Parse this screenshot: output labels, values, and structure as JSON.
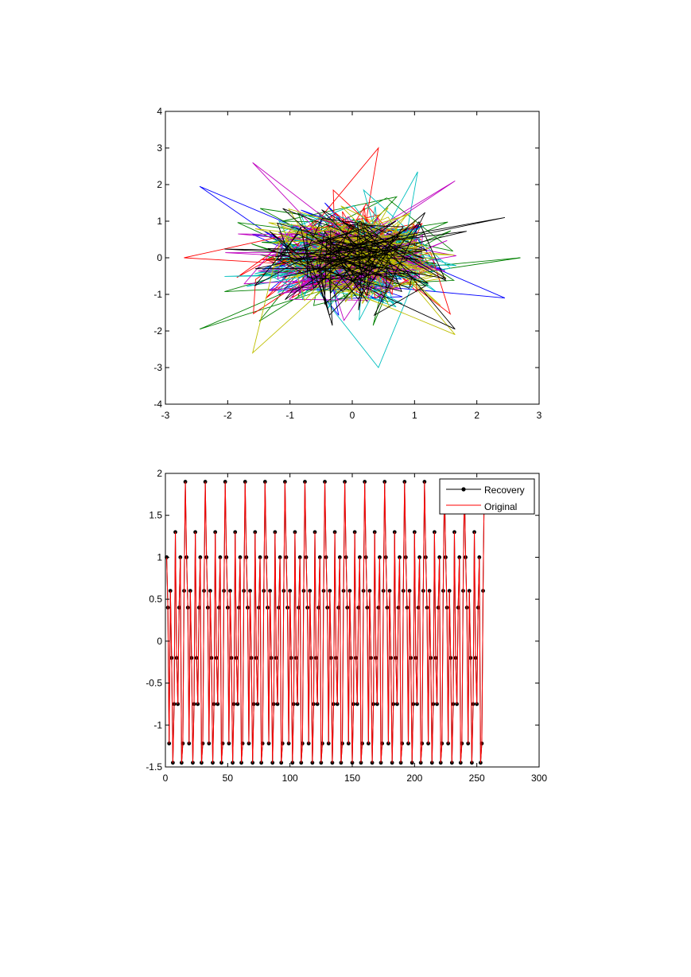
{
  "chart_data": [
    {
      "type": "line",
      "title": "",
      "xlabel": "",
      "ylabel": "",
      "xlim": [
        -3,
        3
      ],
      "ylim": [
        -4,
        4
      ],
      "xticks": [
        -3,
        -2,
        -1,
        0,
        1,
        2,
        3
      ],
      "yticks": [
        -4,
        -3,
        -2,
        -1,
        0,
        1,
        2,
        3,
        4
      ],
      "grid": false,
      "legend": null,
      "series_count": 7,
      "series_colors": [
        "#0000ff",
        "#008000",
        "#ff0000",
        "#00bfbf",
        "#bf00bf",
        "#bfbf00",
        "#000000"
      ],
      "cloud_spread": {
        "x_std": 0.7,
        "y_std": 0.6
      },
      "outlier_points": [
        {
          "x": -2.45,
          "y": 1.95
        },
        {
          "x": -2.45,
          "y": -1.95
        },
        {
          "x": 0.42,
          "y": 3.0
        },
        {
          "x": 0.42,
          "y": -3.0
        },
        {
          "x": -1.6,
          "y": 2.6
        },
        {
          "x": -1.6,
          "y": -2.6
        },
        {
          "x": 2.45,
          "y": 1.1
        },
        {
          "x": 2.45,
          "y": -1.1
        },
        {
          "x": 2.7,
          "y": 0
        },
        {
          "x": -2.7,
          "y": 0
        },
        {
          "x": 1.05,
          "y": 2.35
        },
        {
          "x": 1.65,
          "y": 2.1
        },
        {
          "x": 1.65,
          "y": -2.1
        },
        {
          "x": 1.65,
          "y": -1.95
        }
      ]
    },
    {
      "type": "line",
      "title": "",
      "xlabel": "",
      "ylabel": "",
      "xlim": [
        0,
        300
      ],
      "ylim": [
        -1.5,
        2
      ],
      "xticks": [
        0,
        50,
        100,
        150,
        200,
        250,
        300
      ],
      "yticks": [
        -1.5,
        -1,
        -0.5,
        0,
        0.5,
        1,
        1.5,
        2
      ],
      "grid": false,
      "legend": "top-right",
      "x_start": 1,
      "x_end": 256,
      "period": 16,
      "pattern": [
        1.0,
        0.4,
        -1.22,
        0.6,
        -0.2,
        -1.45,
        -0.75,
        1.3,
        -0.2,
        -0.75,
        0.4,
        1.0,
        -1.45,
        -1.22,
        0.6,
        1.9
      ],
      "series": [
        {
          "name": "Recovery",
          "color": "#000000",
          "marker": "dot"
        },
        {
          "name": "Original",
          "color": "#ff0000",
          "marker": "none"
        }
      ]
    }
  ]
}
